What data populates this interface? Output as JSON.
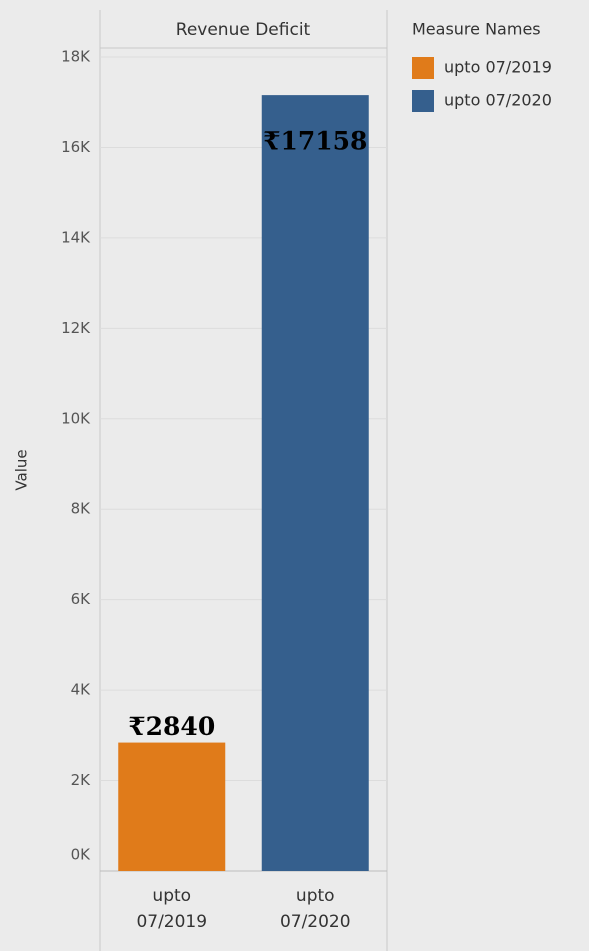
{
  "chart_data": {
    "type": "bar",
    "title": "Revenue Deficit",
    "ylabel": "Value",
    "legend_title": "Measure Names",
    "categories": [
      "upto 07/2019",
      "upto 07/2020"
    ],
    "values": [
      2840,
      17158
    ],
    "value_labels": [
      "₹2840",
      "₹17158"
    ],
    "colors": [
      "#e07b1a",
      "#355f8d"
    ],
    "ylim": [
      0,
      18200
    ],
    "yticks": [
      {
        "value": 0,
        "label": "0K"
      },
      {
        "value": 2000,
        "label": "2K"
      },
      {
        "value": 4000,
        "label": "4K"
      },
      {
        "value": 6000,
        "label": "6K"
      },
      {
        "value": 8000,
        "label": "8K"
      },
      {
        "value": 10000,
        "label": "10K"
      },
      {
        "value": 12000,
        "label": "12K"
      },
      {
        "value": 14000,
        "label": "14K"
      },
      {
        "value": 16000,
        "label": "16K"
      },
      {
        "value": 18000,
        "label": "18K"
      }
    ],
    "grid": true
  }
}
